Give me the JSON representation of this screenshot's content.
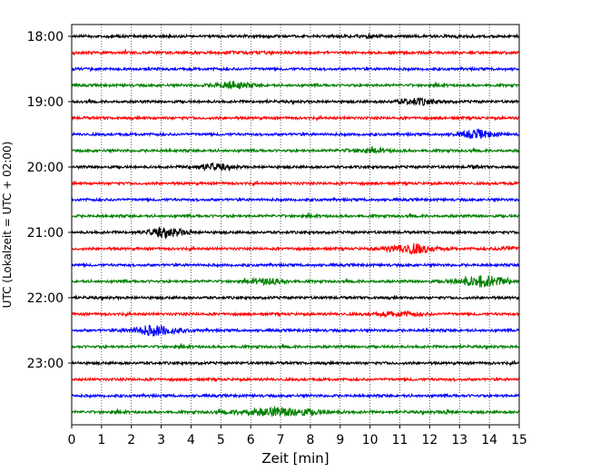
{
  "chart_data": {
    "type": "line",
    "subtype": "helicorder",
    "xlabel": "Zeit  [min]",
    "ylabel": "UTC (Lokalzeit = UTC + 02:00)",
    "xlim": [
      0,
      15
    ],
    "x_ticks": [
      0,
      1,
      2,
      3,
      4,
      5,
      6,
      7,
      8,
      9,
      10,
      11,
      12,
      13,
      14,
      15
    ],
    "y_tick_labels": [
      "18:00",
      "19:00",
      "20:00",
      "21:00",
      "22:00",
      "23:00"
    ],
    "grid": "vertical dotted lines at each minute",
    "trace_interval_minutes": 15,
    "trace_colors_cycle": [
      "#000000",
      "#ff0000",
      "#0000ff",
      "#008000"
    ],
    "traces": [
      {
        "start": "18:00",
        "events": [
          {
            "t": 10.0,
            "amp": 0.9,
            "dur": 0.6
          }
        ]
      },
      {
        "start": "18:15",
        "events": [
          {
            "t": 5.8,
            "amp": 0.8,
            "dur": 0.8
          }
        ]
      },
      {
        "start": "18:30",
        "events": []
      },
      {
        "start": "18:45",
        "events": [
          {
            "t": 5.4,
            "amp": 3.2,
            "dur": 1.0
          }
        ]
      },
      {
        "start": "19:00",
        "events": [
          {
            "t": 11.6,
            "amp": 3.0,
            "dur": 1.0
          }
        ]
      },
      {
        "start": "19:15",
        "events": []
      },
      {
        "start": "19:30",
        "events": [
          {
            "t": 13.6,
            "amp": 4.0,
            "dur": 0.9
          }
        ]
      },
      {
        "start": "19:45",
        "events": [
          {
            "t": 9.9,
            "amp": 1.6,
            "dur": 1.2
          }
        ]
      },
      {
        "start": "20:00",
        "events": [
          {
            "t": 4.7,
            "amp": 2.8,
            "dur": 1.0
          },
          {
            "t": 13.5,
            "amp": 0.8,
            "dur": 0.3
          }
        ]
      },
      {
        "start": "20:15",
        "events": []
      },
      {
        "start": "20:30",
        "events": []
      },
      {
        "start": "20:45",
        "events": []
      },
      {
        "start": "21:00",
        "events": [
          {
            "t": 3.2,
            "amp": 4.2,
            "dur": 1.0
          }
        ]
      },
      {
        "start": "21:15",
        "events": [
          {
            "t": 11.4,
            "amp": 5.0,
            "dur": 1.2
          },
          {
            "t": 14.6,
            "amp": 1.6,
            "dur": 0.6
          }
        ]
      },
      {
        "start": "21:30",
        "events": []
      },
      {
        "start": "21:45",
        "events": [
          {
            "t": 6.6,
            "amp": 2.6,
            "dur": 0.9
          },
          {
            "t": 13.8,
            "amp": 5.5,
            "dur": 1.4
          }
        ]
      },
      {
        "start": "22:00",
        "events": []
      },
      {
        "start": "22:15",
        "events": [
          {
            "t": 11.0,
            "amp": 2.2,
            "dur": 1.2
          }
        ]
      },
      {
        "start": "22:30",
        "events": [
          {
            "t": 2.8,
            "amp": 5.0,
            "dur": 1.2
          }
        ]
      },
      {
        "start": "22:45",
        "events": []
      },
      {
        "start": "23:00",
        "events": []
      },
      {
        "start": "23:15",
        "events": []
      },
      {
        "start": "23:30",
        "events": []
      },
      {
        "start": "23:45",
        "events": [
          {
            "t": 7.0,
            "amp": 4.2,
            "dur": 2.2
          },
          {
            "t": 12.6,
            "amp": 1.0,
            "dur": 0.5
          }
        ]
      }
    ]
  }
}
